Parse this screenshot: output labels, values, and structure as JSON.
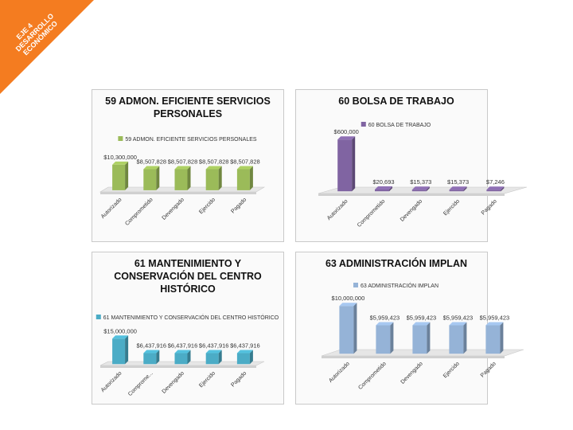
{
  "banner": {
    "text": "EJE 4 DESARROLLO ECONÓMICO",
    "lines": [
      "EJE 4",
      "DESARROLLO",
      "ECONÓMICO"
    ],
    "color": "#f47c20"
  },
  "chart_data": [
    {
      "type": "bar",
      "title": "59 ADMON. EFICIENTE SERVICIOS PERSONALES",
      "title_lines": [
        "59 ADMON. EFICIENTE SERVICIOS",
        "PERSONALES"
      ],
      "legend": "59 ADMON. EFICIENTE SERVICIOS PERSONALES",
      "categories": [
        "Autorizado",
        "Comprometido",
        "Devengado",
        "Ejercido",
        "Pagado"
      ],
      "values": [
        10300000,
        8507828,
        8507828,
        8507828,
        8507828
      ],
      "labels": [
        "$10,300,000",
        "$8,507,828",
        "$8,507,828",
        "$8,507,828",
        "$8,507,828"
      ],
      "color": "#9bbb59",
      "ylim": [
        0,
        10300000
      ]
    },
    {
      "type": "bar",
      "title": "60 BOLSA DE TRABAJO",
      "title_lines": [
        "60 BOLSA DE TRABAJO"
      ],
      "legend": "60 BOLSA DE TRABAJO",
      "categories": [
        "Autorizado",
        "Comprometido",
        "Devengado",
        "Ejercido",
        "Pagado"
      ],
      "values": [
        600000,
        20693,
        15373,
        15373,
        7246
      ],
      "labels": [
        "$600,000",
        "$20,693",
        "$15,373",
        "$15,373",
        "$7,246"
      ],
      "color": "#8064a2",
      "ylim": [
        0,
        600000
      ]
    },
    {
      "type": "bar",
      "title": "61 MANTENIMIENTO Y CONSERVACIÓN DEL CENTRO HISTÓRICO",
      "title_lines": [
        "61 MANTENIMIENTO Y",
        "CONSERVACIÓN DEL CENTRO",
        "HISTÓRICO"
      ],
      "legend": "61 MANTENIMIENTO Y CONSERVACIÓN DEL CENTRO HISTÓRICO",
      "categories": [
        "Autorizado",
        "Comprome...",
        "Devengado",
        "Ejercido",
        "Pagado"
      ],
      "values": [
        15000000,
        6437916,
        6437916,
        6437916,
        6437916
      ],
      "labels": [
        "$15,000,000",
        "$6,437,916",
        "$6,437,916",
        "$6,437,916",
        "$6,437,916"
      ],
      "color": "#4bacc6",
      "ylim": [
        0,
        15000000
      ]
    },
    {
      "type": "bar",
      "title": "63 ADMINISTRACIÓN IMPLAN",
      "title_lines": [
        "63 ADMINISTRACIÓN IMPLAN"
      ],
      "legend": "63 ADMINISTRACIÓN IMPLAN",
      "categories": [
        "Autorizado",
        "Comprometido",
        "Devengado",
        "Ejercido",
        "Pagado"
      ],
      "values": [
        10000000,
        5959423,
        5959423,
        5959423,
        5959423
      ],
      "labels": [
        "$10,000,000",
        "$5,959,423",
        "$5,959,423",
        "$5,959,423",
        "$5,959,423"
      ],
      "color": "#95b3d7",
      "ylim": [
        0,
        10000000
      ]
    }
  ]
}
